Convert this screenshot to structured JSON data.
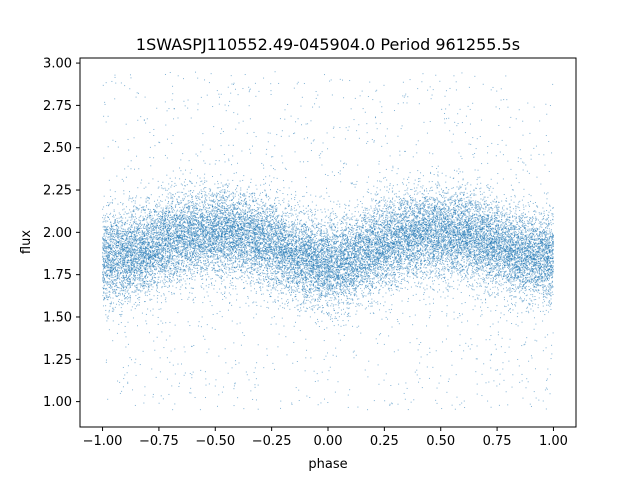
{
  "chart_data": {
    "type": "scatter",
    "title": "1SWASPJ110552.49-045904.0 Period 961255.5s",
    "xlabel": "phase",
    "ylabel": "flux",
    "xlim": [
      -1.1,
      1.1
    ],
    "ylim": [
      0.85,
      3.03
    ],
    "xticks": [
      -1.0,
      -0.75,
      -0.5,
      -0.25,
      0.0,
      0.25,
      0.5,
      0.75,
      1.0
    ],
    "xtick_labels": [
      "−1.00",
      "−0.75",
      "−0.50",
      "−0.25",
      "0.00",
      "0.25",
      "0.50",
      "0.75",
      "1.00"
    ],
    "yticks": [
      1.0,
      1.25,
      1.5,
      1.75,
      2.0,
      2.25,
      2.5,
      2.75,
      3.0
    ],
    "ytick_labels": [
      "1.00",
      "1.25",
      "1.50",
      "1.75",
      "2.00",
      "2.25",
      "2.50",
      "2.75",
      "3.00"
    ],
    "grid": false,
    "point_color": "#1f77b4",
    "point_count": 24000,
    "series": [
      {
        "x_range": [
          -1.0,
          1.0
        ],
        "trend": {
          "phase": [
            -1.0,
            -0.9,
            -0.8,
            -0.7,
            -0.6,
            -0.5,
            -0.4,
            -0.3,
            -0.2,
            -0.1,
            0.0,
            0.1,
            0.2,
            0.3,
            0.4,
            0.5,
            0.6,
            0.7,
            0.8,
            0.9,
            1.0
          ],
          "flux": [
            1.85,
            1.86,
            1.9,
            1.96,
            1.99,
            2.0,
            1.98,
            1.95,
            1.9,
            1.84,
            1.8,
            1.84,
            1.9,
            1.96,
            1.99,
            2.0,
            1.98,
            1.95,
            1.9,
            1.86,
            1.85
          ]
        },
        "core_spread": 0.13,
        "outlier_range": [
          0.95,
          2.95
        ]
      }
    ]
  }
}
